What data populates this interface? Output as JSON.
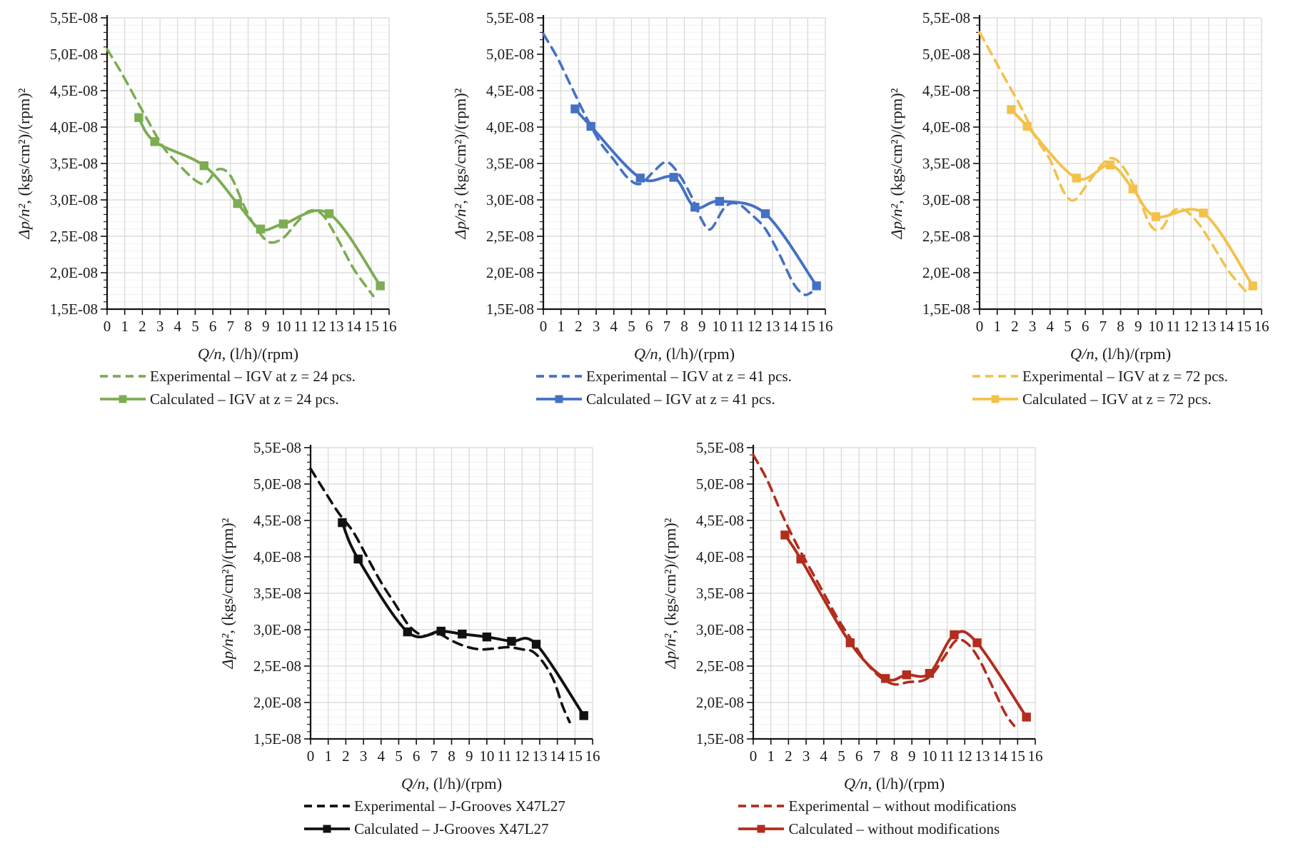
{
  "figure": {
    "y_value_unit": "1E-08",
    "text_color": "#1a1a1a",
    "grid_major_color": "#d7d7d7",
    "grid_minor_color": "#f1f1f1",
    "axis_color": "#111111"
  },
  "chart_data": [
    {
      "name": "igv-z24",
      "type": "line",
      "color": "#7cad52",
      "xlabel_math": "Q/n",
      "xlabel_units": ", (l/h)/(rpm)",
      "ylabel_math": "Δp/n²",
      "ylabel_units": ", (kgs/cm²)/(rpm)²",
      "xlim": [
        0,
        16
      ],
      "ylim": [
        1.5,
        5.5
      ],
      "grid": "on",
      "legend_position": "bottom",
      "x_ticks": [
        "0",
        "1",
        "2",
        "3",
        "4",
        "5",
        "6",
        "7",
        "8",
        "9",
        "10",
        "11",
        "12",
        "13",
        "14",
        "15",
        "16"
      ],
      "y_ticks": [
        "5,5E-08",
        "5,0E-08",
        "4,5E-08",
        "4,0E-08",
        "3,5E-08",
        "3,0E-08",
        "2,5E-08",
        "2,0E-08",
        "1,5E-08"
      ],
      "series": [
        {
          "name": "Experimental – IGV at z = 24 pcs.",
          "style": "dashed",
          "points": [
            [
              0,
              5.07
            ],
            [
              0.8,
              4.75
            ],
            [
              1.6,
              4.4
            ],
            [
              2.4,
              4.05
            ],
            [
              3.2,
              3.72
            ],
            [
              4,
              3.5
            ],
            [
              5,
              3.27
            ],
            [
              5.6,
              3.23
            ],
            [
              6.3,
              3.42
            ],
            [
              7,
              3.33
            ],
            [
              7.8,
              2.9
            ],
            [
              8.5,
              2.6
            ],
            [
              9.2,
              2.42
            ],
            [
              10,
              2.48
            ],
            [
              10.8,
              2.7
            ],
            [
              11.5,
              2.85
            ],
            [
              12.2,
              2.8
            ],
            [
              13,
              2.5
            ],
            [
              14,
              2.05
            ],
            [
              15.1,
              1.68
            ]
          ]
        },
        {
          "name": "Calculated – IGV at z = 24 pcs.",
          "style": "solid-square",
          "points": [
            [
              1.8,
              4.13
            ],
            [
              2.7,
              3.8
            ],
            [
              5.5,
              3.47
            ],
            [
              7.4,
              2.95
            ],
            [
              8.7,
              2.6
            ],
            [
              10,
              2.67
            ],
            [
              12.6,
              2.81
            ],
            [
              15.5,
              1.82
            ]
          ]
        }
      ]
    },
    {
      "name": "igv-z41",
      "type": "line",
      "color": "#4471c4",
      "xlabel_math": "Q/n",
      "xlabel_units": ", (l/h)/(rpm)",
      "ylabel_math": "Δp/n²",
      "ylabel_units": ", (kgs/cm²)/(rpm)²",
      "xlim": [
        0,
        16
      ],
      "ylim": [
        1.5,
        5.5
      ],
      "grid": "on",
      "legend_position": "bottom",
      "x_ticks": [
        "0",
        "1",
        "2",
        "3",
        "4",
        "5",
        "6",
        "7",
        "8",
        "9",
        "10",
        "11",
        "12",
        "13",
        "14",
        "15",
        "16"
      ],
      "y_ticks": [
        "5,5E-08",
        "5,0E-08",
        "4,5E-08",
        "4,0E-08",
        "3,5E-08",
        "3,0E-08",
        "2,5E-08",
        "2,0E-08",
        "1,5E-08"
      ],
      "series": [
        {
          "name": "Experimental – IGV at z = 41 pcs.",
          "style": "dashed",
          "points": [
            [
              0,
              5.28
            ],
            [
              0.8,
              4.95
            ],
            [
              1.6,
              4.55
            ],
            [
              2.4,
              4.15
            ],
            [
              3.2,
              3.8
            ],
            [
              4,
              3.55
            ],
            [
              4.8,
              3.3
            ],
            [
              5.5,
              3.22
            ],
            [
              6.3,
              3.4
            ],
            [
              7,
              3.52
            ],
            [
              7.7,
              3.35
            ],
            [
              8.4,
              3.05
            ],
            [
              9,
              2.72
            ],
            [
              9.5,
              2.6
            ],
            [
              10.3,
              2.9
            ],
            [
              11,
              2.95
            ],
            [
              11.8,
              2.8
            ],
            [
              12.6,
              2.6
            ],
            [
              13.4,
              2.25
            ],
            [
              14.2,
              1.85
            ],
            [
              14.8,
              1.7
            ],
            [
              15.2,
              1.73
            ]
          ]
        },
        {
          "name": "Calculated – IGV at z = 41 pcs.",
          "style": "solid-square",
          "points": [
            [
              1.8,
              4.25
            ],
            [
              2.7,
              4.01
            ],
            [
              5.5,
              3.3
            ],
            [
              7.4,
              3.31
            ],
            [
              8.6,
              2.9
            ],
            [
              10,
              2.98
            ],
            [
              12.6,
              2.81
            ],
            [
              15.5,
              1.82
            ]
          ]
        }
      ]
    },
    {
      "name": "igv-z72",
      "type": "line",
      "color": "#f3c24b",
      "xlabel_math": "Q/n",
      "xlabel_units": ", (l/h)/(rpm)",
      "ylabel_math": "Δp/n²",
      "ylabel_units": ", (kgs/cm²)/(rpm)²",
      "xlim": [
        0,
        16
      ],
      "ylim": [
        1.5,
        5.5
      ],
      "grid": "on",
      "legend_position": "bottom",
      "x_ticks": [
        "0",
        "1",
        "2",
        "3",
        "4",
        "5",
        "6",
        "7",
        "8",
        "9",
        "10",
        "11",
        "12",
        "13",
        "14",
        "15",
        "16"
      ],
      "y_ticks": [
        "5,5E-08",
        "5,0E-08",
        "4,5E-08",
        "4,0E-08",
        "3,5E-08",
        "3,0E-08",
        "2,5E-08",
        "2,0E-08",
        "1,5E-08"
      ],
      "series": [
        {
          "name": "Experimental – IGV at z = 72 pcs.",
          "style": "dashed",
          "points": [
            [
              0,
              5.3
            ],
            [
              0.8,
              4.95
            ],
            [
              1.6,
              4.6
            ],
            [
              2.4,
              4.25
            ],
            [
              3.2,
              3.85
            ],
            [
              4,
              3.55
            ],
            [
              4.8,
              3.1
            ],
            [
              5.4,
              3.0
            ],
            [
              6.2,
              3.25
            ],
            [
              7,
              3.5
            ],
            [
              7.6,
              3.57
            ],
            [
              8.3,
              3.4
            ],
            [
              9,
              3.05
            ],
            [
              9.7,
              2.65
            ],
            [
              10.3,
              2.6
            ],
            [
              11,
              2.85
            ],
            [
              11.7,
              2.85
            ],
            [
              12.5,
              2.65
            ],
            [
              13.3,
              2.35
            ],
            [
              14.2,
              2.0
            ],
            [
              15.2,
              1.72
            ]
          ]
        },
        {
          "name": "Calculated – IGV at z = 72 pcs.",
          "style": "solid-square",
          "points": [
            [
              1.8,
              4.24
            ],
            [
              2.7,
              4.01
            ],
            [
              5.5,
              3.3
            ],
            [
              7.4,
              3.48
            ],
            [
              8.7,
              3.15
            ],
            [
              10,
              2.77
            ],
            [
              12.7,
              2.82
            ],
            [
              15.5,
              1.82
            ]
          ]
        }
      ]
    },
    {
      "name": "j-grooves-x47l27",
      "type": "line",
      "color": "#111111",
      "xlabel_math": "Q/n",
      "xlabel_units": ", (l/h)/(rpm)",
      "ylabel_math": "Δp/n²",
      "ylabel_units": ", (kgs/cm²)/(rpm)²",
      "xlim": [
        0,
        16
      ],
      "ylim": [
        1.5,
        5.5
      ],
      "grid": "on",
      "legend_position": "bottom",
      "x_ticks": [
        "0",
        "1",
        "2",
        "3",
        "4",
        "5",
        "6",
        "7",
        "8",
        "9",
        "10",
        "11",
        "12",
        "13",
        "14",
        "15",
        "16"
      ],
      "y_ticks": [
        "5,5E-08",
        "5,0E-08",
        "4,5E-08",
        "4,0E-08",
        "3,5E-08",
        "3,0E-08",
        "2,5E-08",
        "2,0E-08",
        "1,5E-08"
      ],
      "series": [
        {
          "name": "Experimental – J-Grooves X47L27",
          "style": "dashed",
          "points": [
            [
              0,
              5.21
            ],
            [
              0.8,
              4.9
            ],
            [
              1.6,
              4.6
            ],
            [
              2.4,
              4.35
            ],
            [
              3.2,
              4.0
            ],
            [
              4,
              3.65
            ],
            [
              4.8,
              3.35
            ],
            [
              5.6,
              3.05
            ],
            [
              6.4,
              2.92
            ],
            [
              7.2,
              2.95
            ],
            [
              8,
              2.85
            ],
            [
              8.8,
              2.77
            ],
            [
              9.6,
              2.73
            ],
            [
              10.4,
              2.74
            ],
            [
              11.2,
              2.76
            ],
            [
              12,
              2.73
            ],
            [
              12.6,
              2.7
            ],
            [
              13.2,
              2.55
            ],
            [
              13.8,
              2.3
            ],
            [
              14.3,
              1.95
            ],
            [
              14.7,
              1.73
            ]
          ]
        },
        {
          "name": "Calculated – J-Grooves X47L27",
          "style": "solid-square",
          "points": [
            [
              1.8,
              4.47
            ],
            [
              2.7,
              3.97
            ],
            [
              5.5,
              2.97
            ],
            [
              7.4,
              2.98
            ],
            [
              8.6,
              2.94
            ],
            [
              10,
              2.9
            ],
            [
              11.4,
              2.84
            ],
            [
              12.8,
              2.8
            ],
            [
              15.5,
              1.82
            ]
          ]
        }
      ]
    },
    {
      "name": "without-modifications",
      "type": "line",
      "color": "#b22d1d",
      "xlabel_math": "Q/n",
      "xlabel_units": ", (l/h)/(rpm)",
      "ylabel_math": "Δp/n²",
      "ylabel_units": ", (kgs/cm²)/(rpm)²",
      "xlim": [
        0,
        16
      ],
      "ylim": [
        1.5,
        5.5
      ],
      "grid": "on",
      "legend_position": "bottom",
      "x_ticks": [
        "0",
        "1",
        "2",
        "3",
        "4",
        "5",
        "6",
        "7",
        "8",
        "9",
        "10",
        "11",
        "12",
        "13",
        "14",
        "15",
        "16"
      ],
      "y_ticks": [
        "5,5E-08",
        "5,0E-08",
        "4,5E-08",
        "4,0E-08",
        "3,5E-08",
        "3,0E-08",
        "2,5E-08",
        "2,0E-08",
        "1,5E-08"
      ],
      "series": [
        {
          "name": "Experimental – without modifications",
          "style": "dashed",
          "points": [
            [
              0,
              5.4
            ],
            [
              0.8,
              5.05
            ],
            [
              1.6,
              4.6
            ],
            [
              2.4,
              4.2
            ],
            [
              3.2,
              3.85
            ],
            [
              4,
              3.5
            ],
            [
              4.8,
              3.15
            ],
            [
              5.6,
              2.85
            ],
            [
              6.4,
              2.55
            ],
            [
              7.2,
              2.35
            ],
            [
              8,
              2.25
            ],
            [
              8.8,
              2.28
            ],
            [
              9.6,
              2.3
            ],
            [
              10.2,
              2.4
            ],
            [
              10.9,
              2.65
            ],
            [
              11.5,
              2.85
            ],
            [
              12.1,
              2.82
            ],
            [
              12.8,
              2.6
            ],
            [
              13.6,
              2.2
            ],
            [
              14.3,
              1.85
            ],
            [
              14.8,
              1.68
            ]
          ]
        },
        {
          "name": "Calculated – without modifications",
          "style": "solid-square",
          "points": [
            [
              1.8,
              4.3
            ],
            [
              2.7,
              3.97
            ],
            [
              5.5,
              2.82
            ],
            [
              7.5,
              2.33
            ],
            [
              8.7,
              2.38
            ],
            [
              10,
              2.4
            ],
            [
              11.4,
              2.93
            ],
            [
              12.7,
              2.82
            ],
            [
              15.5,
              1.8
            ]
          ]
        }
      ]
    }
  ]
}
